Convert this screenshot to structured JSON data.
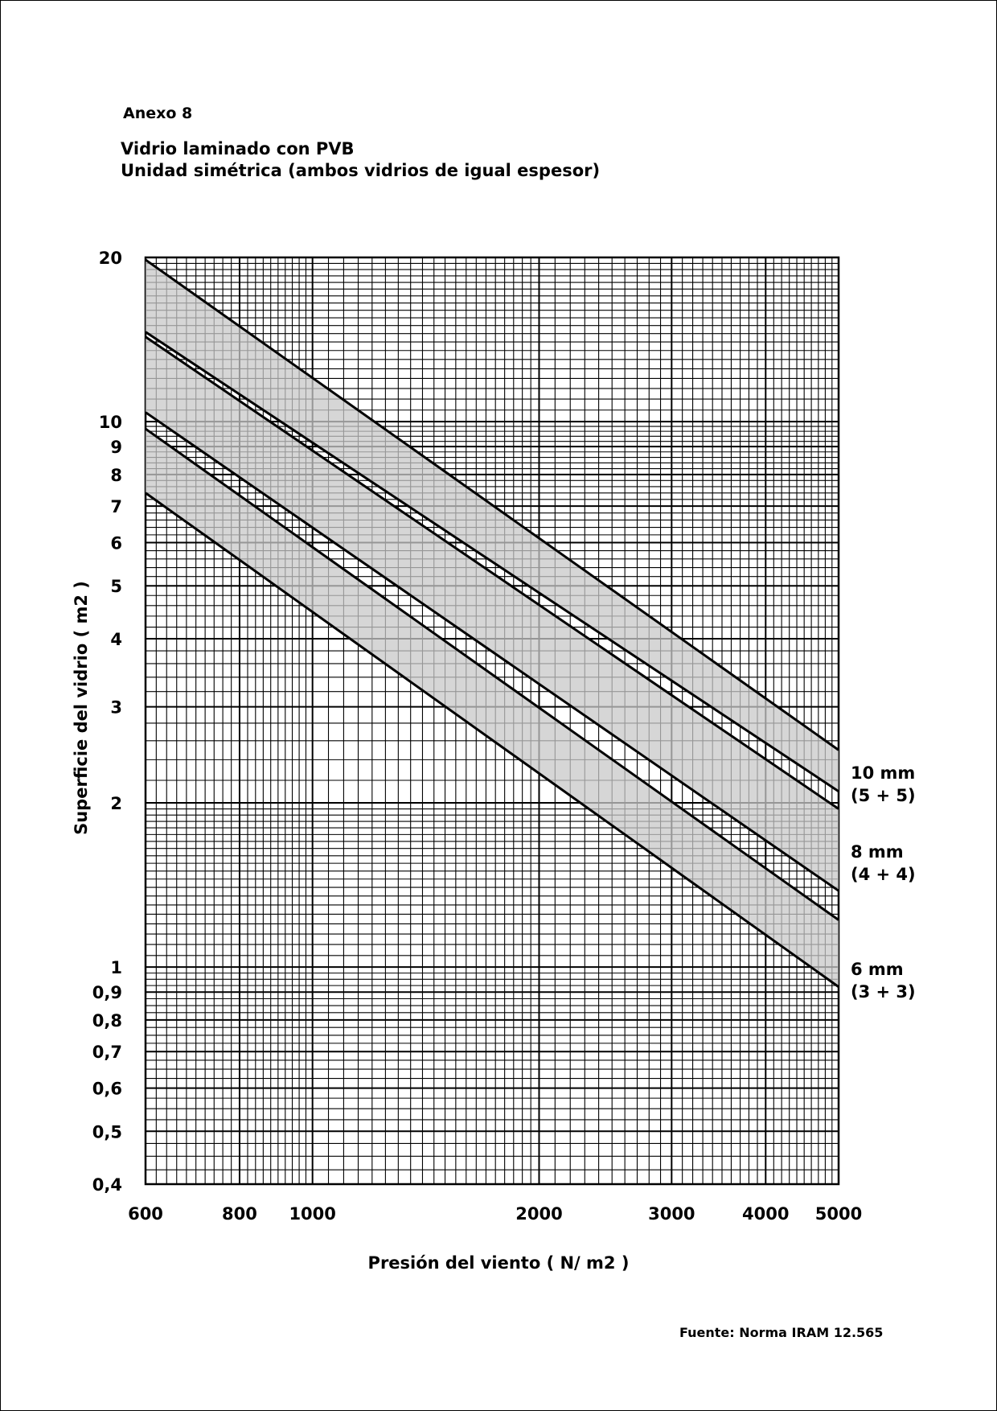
{
  "header": {
    "annex": "Anexo 8",
    "title": "Vidrio laminado con PVB",
    "subtitle": "Unidad simétrica (ambos vidrios de igual espesor)"
  },
  "footer": {
    "source": "Fuente: Norma IRAM 12.565"
  },
  "chart_data": {
    "type": "area",
    "title": "Vidrio laminado con PVB",
    "subtitle": "Unidad simétrica (ambos vidrios de igual espesor)",
    "xlabel": "Presión del viento ( N/ m2 )",
    "ylabel": "Superficie del vidrio ( m2 )",
    "xscale": "log",
    "yscale": "log",
    "xlim": [
      600,
      5000
    ],
    "ylim": [
      0.4,
      20
    ],
    "grid": true,
    "x_ticks": [
      {
        "value": 600,
        "label": "600"
      },
      {
        "value": 800,
        "label": "800"
      },
      {
        "value": 1000,
        "label": "1000"
      },
      {
        "value": 2000,
        "label": "2000"
      },
      {
        "value": 3000,
        "label": "3000"
      },
      {
        "value": 4000,
        "label": "4000"
      },
      {
        "value": 5000,
        "label": "5000"
      }
    ],
    "y_ticks": [
      {
        "value": 20,
        "label": "20"
      },
      {
        "value": 10,
        "label": "10"
      },
      {
        "value": 9,
        "label": "9"
      },
      {
        "value": 8,
        "label": "8"
      },
      {
        "value": 7,
        "label": "7"
      },
      {
        "value": 6,
        "label": "6"
      },
      {
        "value": 5,
        "label": "5"
      },
      {
        "value": 4,
        "label": "4"
      },
      {
        "value": 3,
        "label": "3"
      },
      {
        "value": 2,
        "label": "2"
      },
      {
        "value": 1,
        "label": "1"
      },
      {
        "value": 0.9,
        "label": "0,9"
      },
      {
        "value": 0.8,
        "label": "0,8"
      },
      {
        "value": 0.7,
        "label": "0,7"
      },
      {
        "value": 0.6,
        "label": "0,6"
      },
      {
        "value": 0.5,
        "label": "0,5"
      },
      {
        "value": 0.4,
        "label": "0,4"
      }
    ],
    "series": [
      {
        "name": "10 mm (5 + 5)",
        "label_lines": [
          "10  mm",
          "(5 + 5)"
        ],
        "upper": {
          "x": [
            600,
            5000
          ],
          "y": [
            19.8,
            2.5
          ]
        },
        "lower": {
          "x": [
            600,
            5000
          ],
          "y": [
            14.6,
            2.1
          ]
        }
      },
      {
        "name": "8 mm (4 + 4)",
        "label_lines": [
          "8  mm",
          "(4 + 4)"
        ],
        "upper": {
          "x": [
            600,
            5000
          ],
          "y": [
            14.3,
            1.95
          ]
        },
        "lower": {
          "x": [
            600,
            5000
          ],
          "y": [
            10.4,
            1.38
          ]
        }
      },
      {
        "name": "6 mm (3 + 3)",
        "label_lines": [
          "6  mm",
          "(3 + 3)"
        ],
        "upper": {
          "x": [
            600,
            5000
          ],
          "y": [
            9.7,
            1.22
          ]
        },
        "lower": {
          "x": [
            600,
            5000
          ],
          "y": [
            7.4,
            0.92
          ]
        }
      }
    ],
    "band_fill": "#c8c8c8"
  }
}
